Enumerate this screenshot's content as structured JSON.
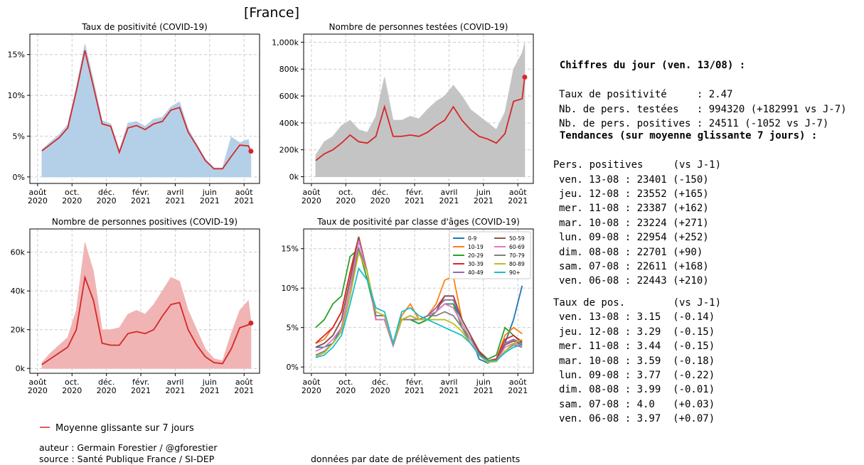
{
  "header": {
    "title": "[France]"
  },
  "chart_data": [
    {
      "type": "line",
      "title": "Taux de positivité (COVID-19)",
      "x": [
        0.25,
        0.75,
        1.25,
        1.75,
        2.25,
        2.75,
        3.25,
        3.75,
        4.25,
        4.75,
        5.25,
        5.75,
        6.25,
        6.75,
        7.25,
        7.75,
        8.25,
        8.75,
        9.25,
        9.75,
        10.25,
        10.75,
        11.25,
        11.75,
        12.25,
        12.4
      ],
      "xlim": [
        -0.45,
        12.9
      ],
      "xticks": [
        {
          "value": 0,
          "label": "août 2020"
        },
        {
          "value": 2,
          "label": "oct. 2020"
        },
        {
          "value": 4,
          "label": "déc. 2020"
        },
        {
          "value": 6,
          "label": "févr. 2021"
        },
        {
          "value": 8,
          "label": "avril 2021"
        },
        {
          "value": 10,
          "label": "juin 2021"
        },
        {
          "value": 12,
          "label": "août 2021"
        }
      ],
      "ylim": [
        -0.8,
        17.5
      ],
      "yticks": [
        {
          "value": 0,
          "label": "0%"
        },
        {
          "value": 5,
          "label": "5%"
        },
        {
          "value": 10,
          "label": "10%"
        },
        {
          "value": 15,
          "label": "15%"
        }
      ],
      "grid": true,
      "series": [
        {
          "kind": "area",
          "color": "#b4d0e8",
          "values": [
            3.3,
            4.3,
            5.2,
            6.4,
            11,
            16.3,
            11.8,
            6.9,
            6.5,
            3.3,
            6.6,
            6.8,
            6.2,
            7.1,
            7.3,
            8.6,
            9.2,
            5.9,
            4,
            2.2,
            1.1,
            1.1,
            4.9,
            4.2,
            4.6,
            2.47
          ]
        },
        {
          "kind": "line",
          "color": "#d62728",
          "end_marker": true,
          "values": [
            3.2,
            4,
            4.8,
            6,
            10.5,
            15.5,
            11,
            6.5,
            6.2,
            3,
            6,
            6.3,
            5.8,
            6.5,
            6.8,
            8.2,
            8.5,
            5.5,
            3.8,
            2,
            1,
            1,
            2.5,
            3.9,
            3.8,
            3.15
          ]
        }
      ]
    },
    {
      "type": "line",
      "title": "Nombre de personnes testées (COVID-19)",
      "x": [
        0.25,
        0.75,
        1.25,
        1.75,
        2.25,
        2.75,
        3.25,
        3.75,
        4.25,
        4.75,
        5.25,
        5.75,
        6.25,
        6.75,
        7.25,
        7.75,
        8.25,
        8.75,
        9.25,
        9.75,
        10.25,
        10.75,
        11.25,
        11.75,
        12.25,
        12.4
      ],
      "xlim": [
        -0.45,
        12.9
      ],
      "xticks": [
        {
          "value": 0,
          "label": "août 2020"
        },
        {
          "value": 2,
          "label": "oct. 2020"
        },
        {
          "value": 4,
          "label": "déc. 2020"
        },
        {
          "value": 6,
          "label": "févr. 2021"
        },
        {
          "value": 8,
          "label": "avril 2021"
        },
        {
          "value": 10,
          "label": "juin 2021"
        },
        {
          "value": 12,
          "label": "août 2021"
        }
      ],
      "ylim": [
        -50000,
        1060000
      ],
      "yticks": [
        {
          "value": 0,
          "label": "0k"
        },
        {
          "value": 200000,
          "label": "200k"
        },
        {
          "value": 400000,
          "label": "400k"
        },
        {
          "value": 600000,
          "label": "600k"
        },
        {
          "value": 800000,
          "label": "800k"
        },
        {
          "value": 1000000,
          "label": "1,000k"
        }
      ],
      "grid": true,
      "series": [
        {
          "kind": "area",
          "color": "#c4c4c4",
          "values": [
            160000,
            260000,
            300000,
            380000,
            420000,
            350000,
            330000,
            450000,
            740000,
            420000,
            420000,
            450000,
            430000,
            500000,
            560000,
            600000,
            680000,
            600000,
            500000,
            450000,
            400000,
            350000,
            480000,
            800000,
            920000,
            994320
          ]
        },
        {
          "kind": "line",
          "color": "#d62728",
          "end_marker": true,
          "values": [
            120000,
            170000,
            200000,
            250000,
            310000,
            260000,
            250000,
            300000,
            520000,
            300000,
            300000,
            310000,
            300000,
            330000,
            380000,
            420000,
            520000,
            420000,
            350000,
            300000,
            280000,
            250000,
            320000,
            560000,
            580000,
            740000
          ]
        }
      ]
    },
    {
      "type": "line",
      "title": "Nombre de personnes positives (COVID-19)",
      "x": [
        0.25,
        0.75,
        1.25,
        1.75,
        2.25,
        2.75,
        3.25,
        3.75,
        4.25,
        4.75,
        5.25,
        5.75,
        6.25,
        6.75,
        7.25,
        7.75,
        8.25,
        8.75,
        9.25,
        9.75,
        10.25,
        10.75,
        11.25,
        11.75,
        12.25,
        12.4
      ],
      "xlim": [
        -0.45,
        12.9
      ],
      "xticks": [
        {
          "value": 0,
          "label": "août 2020"
        },
        {
          "value": 2,
          "label": "oct. 2020"
        },
        {
          "value": 4,
          "label": "déc. 2020"
        },
        {
          "value": 6,
          "label": "févr. 2021"
        },
        {
          "value": 8,
          "label": "avril 2021"
        },
        {
          "value": 10,
          "label": "juin 2021"
        },
        {
          "value": 12,
          "label": "août 2021"
        }
      ],
      "ylim": [
        -2500,
        72000
      ],
      "yticks": [
        {
          "value": 0,
          "label": "0k"
        },
        {
          "value": 20000,
          "label": "20k"
        },
        {
          "value": 40000,
          "label": "40k"
        },
        {
          "value": 60000,
          "label": "60k"
        }
      ],
      "grid": true,
      "series": [
        {
          "kind": "area",
          "color": "#f0b4b4",
          "values": [
            3000,
            8000,
            12000,
            16000,
            30000,
            65000,
            50000,
            20000,
            20000,
            21000,
            28000,
            30000,
            28000,
            33000,
            40000,
            47000,
            45000,
            30000,
            20000,
            10000,
            5000,
            4000,
            18000,
            30000,
            35000,
            24511
          ]
        },
        {
          "kind": "line",
          "color": "#d62728",
          "end_marker": true,
          "values": [
            2000,
            5000,
            8000,
            11000,
            20000,
            47000,
            35000,
            13000,
            12000,
            12000,
            18000,
            19000,
            18000,
            20000,
            27000,
            33000,
            34000,
            20000,
            12000,
            6000,
            3000,
            2500,
            10000,
            21000,
            22500,
            23401
          ]
        }
      ]
    },
    {
      "type": "line",
      "title": "Taux de positivité par classe d'âges (COVID-19)",
      "x": [
        0.25,
        0.75,
        1.25,
        1.75,
        2.25,
        2.75,
        3.25,
        3.75,
        4.25,
        4.75,
        5.25,
        5.75,
        6.25,
        6.75,
        7.25,
        7.75,
        8.25,
        8.75,
        9.25,
        9.75,
        10.25,
        10.75,
        11.25,
        11.75,
        12.25
      ],
      "xlim": [
        -0.45,
        12.9
      ],
      "xticks": [
        {
          "value": 0,
          "label": "août 2020"
        },
        {
          "value": 2,
          "label": "oct. 2020"
        },
        {
          "value": 4,
          "label": "déc. 2020"
        },
        {
          "value": 6,
          "label": "févr. 2021"
        },
        {
          "value": 8,
          "label": "avril 2021"
        },
        {
          "value": 10,
          "label": "juin 2021"
        },
        {
          "value": 12,
          "label": "août 2021"
        }
      ],
      "ylim": [
        -0.8,
        17.5
      ],
      "yticks": [
        {
          "value": 0,
          "label": "0%"
        },
        {
          "value": 5,
          "label": "5%"
        },
        {
          "value": 10,
          "label": "10%"
        },
        {
          "value": 15,
          "label": "15%"
        }
      ],
      "grid": true,
      "legend": "upper right",
      "series": [
        {
          "name": "0-9",
          "kind": "line",
          "color": "#1f77b4",
          "values": [
            2.5,
            2.5,
            3,
            5,
            10,
            15,
            12,
            6,
            6,
            3,
            6,
            6,
            5.5,
            6,
            7,
            8,
            8,
            6,
            4,
            1,
            0.5,
            1,
            3,
            6,
            10.3
          ]
        },
        {
          "name": "10-19",
          "kind": "line",
          "color": "#ff7f0e",
          "values": [
            3,
            3.5,
            5,
            7,
            12,
            16.5,
            12,
            6.5,
            6.5,
            3,
            6.5,
            8,
            6,
            6.5,
            8,
            11,
            11.5,
            6,
            4,
            2,
            0.8,
            1,
            4,
            5,
            4.2
          ]
        },
        {
          "name": "20-29",
          "kind": "line",
          "color": "#2ca02c",
          "values": [
            5,
            6,
            8,
            9,
            14,
            15,
            11,
            6.5,
            6.5,
            3,
            6,
            6,
            5.5,
            6,
            7,
            8,
            8,
            5,
            3.5,
            2,
            1,
            1.5,
            5,
            4,
            3
          ]
        },
        {
          "name": "30-39",
          "kind": "line",
          "color": "#d62728",
          "values": [
            3,
            4,
            5,
            7,
            12,
            16.5,
            12,
            6,
            6,
            2.8,
            6,
            6.5,
            6,
            6.5,
            7.5,
            9,
            9,
            6,
            4,
            2,
            0.8,
            1,
            3.5,
            4,
            3.2
          ]
        },
        {
          "name": "40-49",
          "kind": "line",
          "color": "#9467bd",
          "values": [
            2.5,
            3,
            4,
            6,
            11,
            16,
            12,
            6,
            6,
            2.8,
            6,
            6.5,
            6,
            6.5,
            7.5,
            8.5,
            8.5,
            6,
            4,
            1.8,
            0.7,
            0.8,
            3,
            3.5,
            3
          ]
        },
        {
          "name": "50-59",
          "kind": "line",
          "color": "#8c564b",
          "values": [
            2.5,
            3,
            4,
            6,
            11,
            16.5,
            12,
            6,
            6,
            2.7,
            6,
            6,
            6,
            6.5,
            7,
            9,
            9,
            6,
            4,
            1.8,
            0.7,
            0.8,
            2.8,
            3.3,
            2.8
          ]
        },
        {
          "name": "60-69",
          "kind": "line",
          "color": "#e377c2",
          "values": [
            2,
            2.5,
            3.5,
            5,
            10,
            16,
            12,
            6,
            6,
            2.8,
            6,
            6,
            6,
            6.5,
            7,
            8,
            7.5,
            5.5,
            3.5,
            1.5,
            0.6,
            0.7,
            2.5,
            3,
            2.7
          ]
        },
        {
          "name": "70-79",
          "kind": "line",
          "color": "#7f7f7f",
          "values": [
            1.5,
            2,
            3,
            4.5,
            9,
            15,
            12,
            6.5,
            6.5,
            3,
            6,
            6,
            6,
            6.5,
            6.5,
            7,
            6.5,
            5,
            3,
            1.5,
            0.6,
            0.7,
            2,
            2.8,
            2.5
          ]
        },
        {
          "name": "80-89",
          "kind": "line",
          "color": "#bcbd22",
          "values": [
            1.3,
            1.8,
            3,
            4.5,
            9,
            14.5,
            12,
            7,
            6.5,
            3,
            6,
            6.5,
            6,
            6,
            6,
            6,
            5.5,
            4.5,
            3,
            1.5,
            0.6,
            0.7,
            2,
            3,
            3.5
          ]
        },
        {
          "name": "90+",
          "kind": "line",
          "color": "#17becf",
          "values": [
            1.2,
            1.5,
            2.5,
            4,
            8,
            12.5,
            11,
            7.5,
            7,
            3,
            7,
            7.5,
            6.5,
            6,
            5.5,
            5,
            4.5,
            4,
            3,
            1.5,
            0.8,
            0.8,
            1.8,
            2.5,
            2.8
          ]
        }
      ]
    }
  ],
  "daily": {
    "title": "Chiffres du jour (ven. 13/08) :",
    "lines": [
      "Taux de positivité     : 2.47",
      "Nb. de pers. testées   : 994320 (+182991 vs J-7)",
      "Nb. de pers. positives : 24511 (-1052 vs J-7)"
    ]
  },
  "trends": {
    "title": "Tendances (sur moyenne glissante 7 jours) :",
    "sections": [
      {
        "header": "Pers. positives     (vs J-1)",
        "rows": [
          "ven. 13-08 : 23401 (-150)",
          "jeu. 12-08 : 23552 (+165)",
          "mer. 11-08 : 23387 (+162)",
          "mar. 10-08 : 23224 (+271)",
          "lun. 09-08 : 22954 (+252)",
          "dim. 08-08 : 22701 (+90)",
          "sam. 07-08 : 22611 (+168)",
          "ven. 06-08 : 22443 (+210)"
        ]
      },
      {
        "header": "Taux de pos.        (vs J-1)",
        "rows": [
          "ven. 13-08 : 3.15  (-0.14)",
          "jeu. 12-08 : 3.29  (-0.15)",
          "mer. 11-08 : 3.44  (-0.15)",
          "mar. 10-08 : 3.59  (-0.18)",
          "lun. 09-08 : 3.77  (-0.22)",
          "dim. 08-08 : 3.99  (-0.01)",
          "sam. 07-08 : 4.0   (+0.03)",
          "ven. 06-08 : 3.97  (+0.07)"
        ]
      }
    ]
  },
  "footer": {
    "legend": "Moyenne glissante sur 7 jours",
    "legend_color": "#d62728",
    "author": "auteur : Germain Forestier / @gforestier",
    "source": "source : Santé Publique France / SI-DEP",
    "note": "données par date de prélèvement des patients"
  }
}
